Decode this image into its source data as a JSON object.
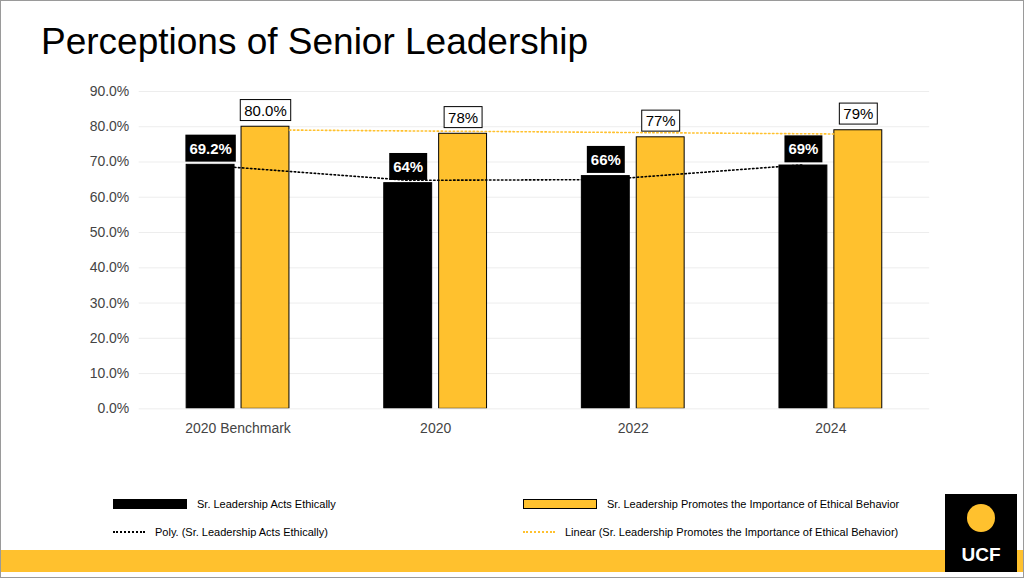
{
  "chart_data": {
    "type": "bar",
    "title": "Perceptions of Senior Leadership",
    "categories": [
      "2020 Benchmark",
      "2020",
      "2022",
      "2024"
    ],
    "series": [
      {
        "name": "Sr. Leadership Acts Ethically",
        "type": "bar",
        "color": "#000000",
        "values": [
          69.2,
          64,
          66,
          69
        ],
        "value_labels": [
          "69.2%",
          "64%",
          "66%",
          "69%"
        ]
      },
      {
        "name": "Sr. Leadership Promotes the Importance of Ethical Behavior",
        "type": "bar",
        "color": "#FFC12E",
        "values": [
          80,
          78,
          77,
          79
        ],
        "value_labels": [
          "80.0%",
          "78%",
          "77%",
          "79%"
        ]
      },
      {
        "name": "Poly. (Sr. Leadership Acts Ethically)",
        "type": "line",
        "color": "#000000",
        "line_style": "dotted",
        "values": [
          69.0,
          64.8,
          65.0,
          69.2
        ]
      },
      {
        "name": "Linear (Sr. Leadership Promotes the Importance of Ethical Behavior)",
        "type": "line",
        "color": "#FFC12E",
        "line_style": "dotted",
        "values": [
          79.1,
          78.7,
          78.3,
          77.9
        ]
      }
    ],
    "ylim": [
      0,
      90
    ],
    "yticks": [
      {
        "value": 0,
        "label": "0.0%"
      },
      {
        "value": 10,
        "label": "10.0%"
      },
      {
        "value": 20,
        "label": "20.0%"
      },
      {
        "value": 30,
        "label": "30.0%"
      },
      {
        "value": 40,
        "label": "40.0%"
      },
      {
        "value": 50,
        "label": "50.0%"
      },
      {
        "value": 60,
        "label": "60.0%"
      },
      {
        "value": 70,
        "label": "70.0%"
      },
      {
        "value": 80,
        "label": "80.0%"
      },
      {
        "value": 90,
        "label": "90.0%"
      }
    ],
    "grid": true,
    "data_labels": true,
    "legend": "bottom"
  },
  "logo": "UCF"
}
